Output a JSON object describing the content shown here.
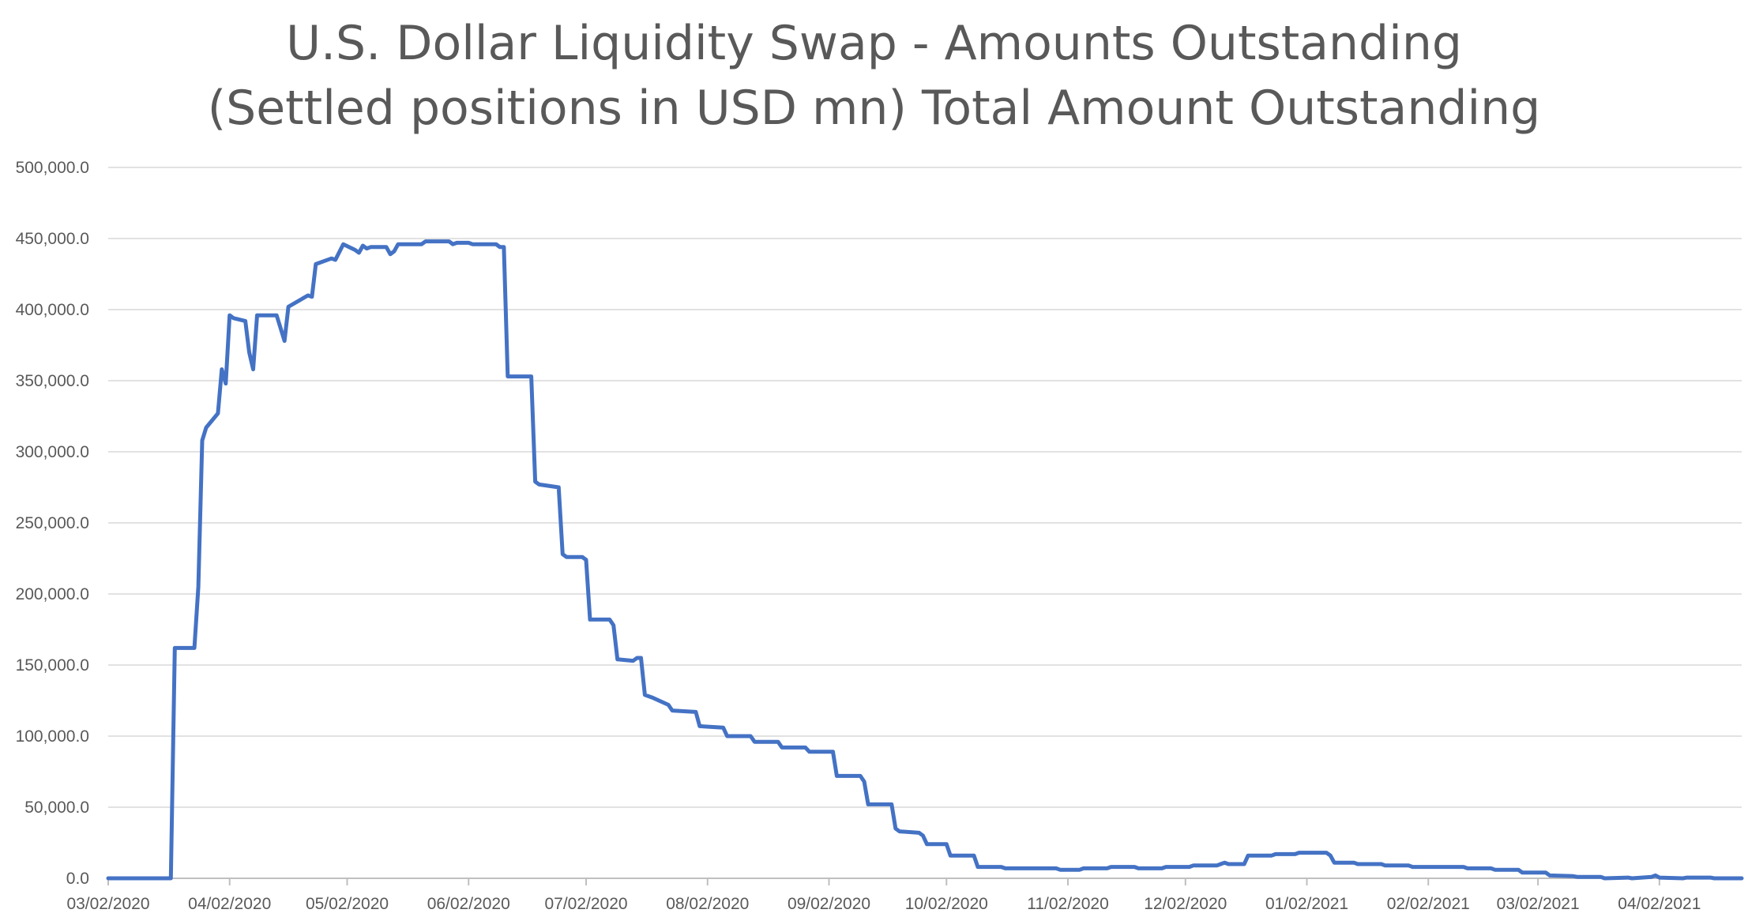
{
  "chart_data": {
    "type": "line",
    "title": "U.S. Dollar Liquidity Swap - Amounts Outstanding",
    "subtitle": "(Settled positions in USD mn) Total Amount Outstanding",
    "xlabel": "",
    "ylabel": "",
    "ylim": [
      0,
      500000
    ],
    "xlim": [
      "03/02/2020",
      "04/23/2021"
    ],
    "grid": true,
    "legend": "none",
    "y_ticks": [
      {
        "value": 0,
        "label": "0.0"
      },
      {
        "value": 50000,
        "label": "50,000.0"
      },
      {
        "value": 100000,
        "label": "100,000.0"
      },
      {
        "value": 150000,
        "label": "150,000.0"
      },
      {
        "value": 200000,
        "label": "200,000.0"
      },
      {
        "value": 250000,
        "label": "250,000.0"
      },
      {
        "value": 300000,
        "label": "300,000.0"
      },
      {
        "value": 350000,
        "label": "350,000.0"
      },
      {
        "value": 400000,
        "label": "400,000.0"
      },
      {
        "value": 450000,
        "label": "450,000.0"
      },
      {
        "value": 500000,
        "label": "500,000.0"
      }
    ],
    "x_ticks": [
      {
        "date": "03/02/2020",
        "label": "03/02/2020"
      },
      {
        "date": "04/02/2020",
        "label": "04/02/2020"
      },
      {
        "date": "05/02/2020",
        "label": "05/02/2020"
      },
      {
        "date": "06/02/2020",
        "label": "06/02/2020"
      },
      {
        "date": "07/02/2020",
        "label": "07/02/2020"
      },
      {
        "date": "08/02/2020",
        "label": "08/02/2020"
      },
      {
        "date": "09/02/2020",
        "label": "09/02/2020"
      },
      {
        "date": "10/02/2020",
        "label": "10/02/2020"
      },
      {
        "date": "11/02/2020",
        "label": "11/02/2020"
      },
      {
        "date": "12/02/2020",
        "label": "12/02/2020"
      },
      {
        "date": "01/02/2021",
        "label": "01/02/2021"
      },
      {
        "date": "02/02/2021",
        "label": "02/02/2021"
      },
      {
        "date": "03/02/2021",
        "label": "03/02/2021"
      },
      {
        "date": "04/02/2021",
        "label": "04/02/2021"
      }
    ],
    "series": [
      {
        "color": "#4472c4",
        "points": [
          [
            "03/02/2020",
            0
          ],
          [
            "03/18/2020",
            0
          ],
          [
            "03/19/2020",
            162000
          ],
          [
            "03/24/2020",
            162000
          ],
          [
            "03/25/2020",
            205000
          ],
          [
            "03/26/2020",
            308000
          ],
          [
            "03/27/2020",
            317000
          ],
          [
            "03/30/2020",
            327000
          ],
          [
            "03/31/2020",
            358000
          ],
          [
            "04/01/2020",
            348000
          ],
          [
            "04/02/2020",
            396000
          ],
          [
            "04/03/2020",
            394000
          ],
          [
            "04/06/2020",
            392000
          ],
          [
            "04/07/2020",
            370000
          ],
          [
            "04/08/2020",
            358000
          ],
          [
            "04/09/2020",
            396000
          ],
          [
            "04/14/2020",
            396000
          ],
          [
            "04/16/2020",
            378000
          ],
          [
            "04/17/2020",
            402000
          ],
          [
            "04/22/2020",
            410000
          ],
          [
            "04/23/2020",
            409000
          ],
          [
            "04/24/2020",
            432000
          ],
          [
            "04/28/2020",
            436000
          ],
          [
            "04/29/2020",
            435000
          ],
          [
            "05/01/2020",
            446000
          ],
          [
            "05/04/2020",
            442000
          ],
          [
            "05/05/2020",
            440000
          ],
          [
            "05/06/2020",
            445000
          ],
          [
            "05/07/2020",
            443000
          ],
          [
            "05/08/2020",
            444000
          ],
          [
            "05/12/2020",
            444000
          ],
          [
            "05/13/2020",
            439000
          ],
          [
            "05/14/2020",
            441000
          ],
          [
            "05/15/2020",
            446000
          ],
          [
            "05/21/2020",
            446000
          ],
          [
            "05/22/2020",
            448000
          ],
          [
            "05/28/2020",
            448000
          ],
          [
            "05/29/2020",
            446000
          ],
          [
            "05/30/2020",
            447000
          ],
          [
            "06/02/2020",
            447000
          ],
          [
            "06/03/2020",
            446000
          ],
          [
            "06/09/2020",
            446000
          ],
          [
            "06/10/2020",
            444000
          ],
          [
            "06/11/2020",
            444000
          ],
          [
            "06/12/2020",
            353000
          ],
          [
            "06/18/2020",
            353000
          ],
          [
            "06/19/2020",
            279000
          ],
          [
            "06/20/2020",
            277000
          ],
          [
            "06/25/2020",
            275000
          ],
          [
            "06/26/2020",
            228000
          ],
          [
            "06/27/2020",
            226000
          ],
          [
            "07/01/2020",
            226000
          ],
          [
            "07/02/2020",
            224000
          ],
          [
            "07/03/2020",
            182000
          ],
          [
            "07/08/2020",
            182000
          ],
          [
            "07/09/2020",
            178000
          ],
          [
            "07/10/2020",
            154000
          ],
          [
            "07/14/2020",
            153000
          ],
          [
            "07/15/2020",
            155000
          ],
          [
            "07/16/2020",
            155000
          ],
          [
            "07/17/2020",
            129000
          ],
          [
            "07/19/2020",
            127000
          ],
          [
            "07/23/2020",
            122000
          ],
          [
            "07/24/2020",
            118000
          ],
          [
            "07/30/2020",
            117000
          ],
          [
            "07/31/2020",
            107000
          ],
          [
            "08/06/2020",
            106000
          ],
          [
            "08/07/2020",
            100000
          ],
          [
            "08/13/2020",
            100000
          ],
          [
            "08/14/2020",
            96000
          ],
          [
            "08/20/2020",
            96000
          ],
          [
            "08/21/2020",
            92000
          ],
          [
            "08/27/2020",
            92000
          ],
          [
            "08/28/2020",
            89000
          ],
          [
            "09/03/2020",
            89000
          ],
          [
            "09/04/2020",
            72000
          ],
          [
            "09/10/2020",
            72000
          ],
          [
            "09/11/2020",
            68000
          ],
          [
            "09/12/2020",
            52000
          ],
          [
            "09/18/2020",
            52000
          ],
          [
            "09/19/2020",
            35000
          ],
          [
            "09/20/2020",
            33000
          ],
          [
            "09/25/2020",
            32000
          ],
          [
            "09/26/2020",
            30000
          ],
          [
            "09/27/2020",
            24000
          ],
          [
            "10/02/2020",
            24000
          ],
          [
            "10/03/2020",
            16000
          ],
          [
            "10/09/2020",
            16000
          ],
          [
            "10/10/2020",
            8000
          ],
          [
            "10/16/2020",
            8000
          ],
          [
            "10/17/2020",
            7000
          ],
          [
            "10/30/2020",
            7000
          ],
          [
            "10/31/2020",
            6000
          ],
          [
            "11/05/2020",
            6000
          ],
          [
            "11/06/2020",
            7000
          ],
          [
            "11/12/2020",
            7000
          ],
          [
            "11/13/2020",
            8000
          ],
          [
            "11/19/2020",
            8000
          ],
          [
            "11/20/2020",
            7000
          ],
          [
            "11/26/2020",
            7000
          ],
          [
            "11/27/2020",
            8000
          ],
          [
            "12/03/2020",
            8000
          ],
          [
            "12/04/2020",
            9000
          ],
          [
            "12/10/2020",
            9000
          ],
          [
            "12/11/2020",
            10000
          ],
          [
            "12/12/2020",
            11000
          ],
          [
            "12/13/2020",
            10000
          ],
          [
            "12/17/2020",
            10000
          ],
          [
            "12/18/2020",
            16000
          ],
          [
            "12/24/2020",
            16000
          ],
          [
            "12/25/2020",
            17000
          ],
          [
            "12/30/2020",
            17000
          ],
          [
            "12/31/2020",
            18000
          ],
          [
            "01/07/2021",
            18000
          ],
          [
            "01/08/2021",
            16000
          ],
          [
            "01/09/2021",
            11000
          ],
          [
            "01/14/2021",
            11000
          ],
          [
            "01/15/2021",
            10000
          ],
          [
            "01/21/2021",
            10000
          ],
          [
            "01/22/2021",
            9000
          ],
          [
            "01/28/2021",
            9000
          ],
          [
            "01/29/2021",
            8000
          ],
          [
            "02/11/2021",
            8000
          ],
          [
            "02/12/2021",
            7000
          ],
          [
            "02/18/2021",
            7000
          ],
          [
            "02/19/2021",
            6000
          ],
          [
            "02/25/2021",
            6000
          ],
          [
            "02/26/2021",
            4000
          ],
          [
            "03/04/2021",
            4000
          ],
          [
            "03/05/2021",
            2000
          ],
          [
            "03/11/2021",
            1500
          ],
          [
            "03/12/2021",
            1000
          ],
          [
            "03/18/2021",
            1000
          ],
          [
            "03/19/2021",
            0
          ],
          [
            "03/25/2021",
            500
          ],
          [
            "03/26/2021",
            0
          ],
          [
            "03/31/2021",
            1000
          ],
          [
            "04/01/2021",
            2000
          ],
          [
            "04/02/2021",
            500
          ],
          [
            "04/08/2021",
            0
          ],
          [
            "04/09/2021",
            500
          ],
          [
            "04/15/2021",
            500
          ],
          [
            "04/16/2021",
            0
          ],
          [
            "04/23/2021",
            0
          ]
        ]
      }
    ]
  }
}
